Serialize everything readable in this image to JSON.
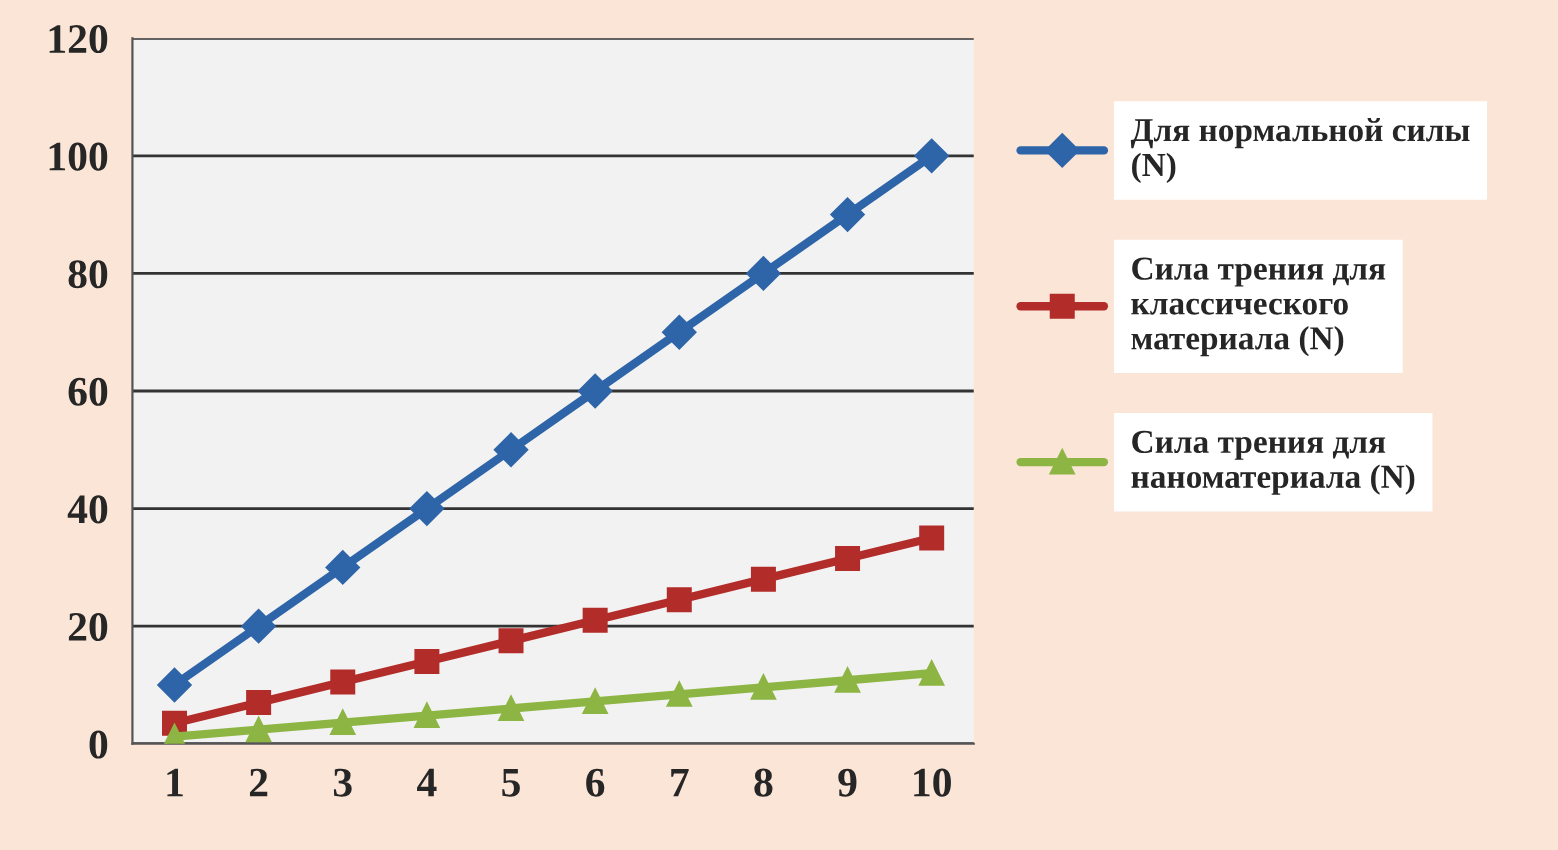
{
  "chart_data": {
    "type": "line",
    "categories": [
      "1",
      "2",
      "3",
      "4",
      "5",
      "6",
      "7",
      "8",
      "9",
      "10"
    ],
    "series": [
      {
        "name": "Для нормальной силы (N)",
        "color": "#2e64a8",
        "marker": "diamond",
        "values": [
          10,
          20,
          30,
          40,
          50,
          60,
          70,
          80,
          90,
          100
        ]
      },
      {
        "name": "Сила трения для классического материала (N)",
        "color": "#b22d2a",
        "marker": "square",
        "values": [
          3.5,
          7,
          10.5,
          14,
          17.5,
          21,
          24.5,
          28,
          31.5,
          35
        ]
      },
      {
        "name": "Сила трения для наноматериала (N)",
        "color": "#8db543",
        "marker": "triangle",
        "values": [
          1.2,
          2.4,
          3.6,
          4.8,
          6,
          7.2,
          8.4,
          9.6,
          10.8,
          12
        ]
      }
    ],
    "ylim": [
      0,
      120
    ],
    "yticks": [
      0,
      20,
      40,
      60,
      80,
      100,
      120
    ],
    "grid": "y",
    "legend": "right",
    "line_style": "solid"
  }
}
